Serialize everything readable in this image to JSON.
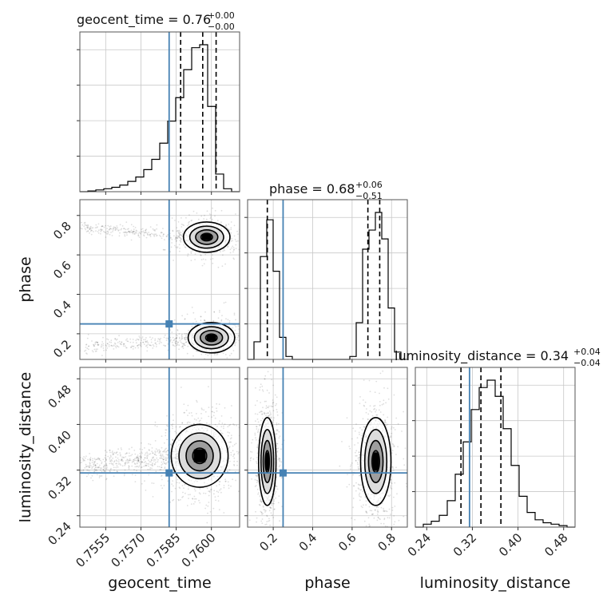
{
  "chart_data": {
    "type": "corner",
    "parameters": [
      {
        "name": "geocent_time",
        "title_main": "geocent_time = 0.76",
        "title_plus": "+0.00",
        "title_minus": "−0.00",
        "range": [
          0.7544,
          0.7612
        ],
        "ticks": [
          0.7555,
          0.757,
          0.7585,
          0.76
        ],
        "tick_labels": [
          "0.7555",
          "0.7570",
          "0.7585",
          "0.7600"
        ],
        "truth": 0.7582,
        "quantiles": [
          0.75869,
          0.75963,
          0.7602
        ],
        "hist": [
          0.0,
          0.005,
          0.012,
          0.02,
          0.03,
          0.045,
          0.07,
          0.1,
          0.15,
          0.22,
          0.33,
          0.48,
          0.64,
          0.83,
          0.98,
          1.0,
          0.58,
          0.12,
          0.02,
          0.0
        ]
      },
      {
        "name": "phase",
        "title_main": "phase = 0.68",
        "title_plus": "+0.06",
        "title_minus": "−0.51",
        "range": [
          0.07,
          0.88
        ],
        "ticks": [
          0.2,
          0.4,
          0.6,
          0.8
        ],
        "tick_labels": [
          "0.2",
          "0.4",
          "0.6",
          "0.8"
        ],
        "truth": 0.25,
        "quantiles": [
          0.17,
          0.68,
          0.74
        ],
        "hist": [
          0.0,
          0.12,
          0.7,
          0.95,
          0.6,
          0.15,
          0.02,
          0.0,
          0.0,
          0.0,
          0.0,
          0.0,
          0.0,
          0.0,
          0.0,
          0.0,
          0.02,
          0.25,
          0.75,
          0.88,
          1.0,
          0.82,
          0.35,
          0.05,
          0.0
        ]
      },
      {
        "name": "luminosity_distance",
        "title_main": "luminosity_distance = 0.34",
        "title_plus": "+0.04",
        "title_minus": "−0.04",
        "range": [
          0.22,
          0.5
        ],
        "ticks": [
          0.24,
          0.32,
          0.4,
          0.48
        ],
        "tick_labels": [
          "0.24",
          "0.32",
          "0.40",
          "0.48"
        ],
        "truth": 0.315,
        "quantiles": [
          0.3,
          0.335,
          0.37
        ],
        "hist": [
          0.0,
          0.02,
          0.04,
          0.08,
          0.18,
          0.36,
          0.58,
          0.8,
          0.95,
          1.0,
          0.89,
          0.67,
          0.42,
          0.21,
          0.1,
          0.05,
          0.03,
          0.02,
          0.01,
          0.0
        ]
      }
    ],
    "two_d": [
      {
        "x": "geocent_time",
        "y": "phase",
        "modes": [
          {
            "mx": 0.7598,
            "my": 0.69,
            "sx": 0.00045,
            "sy": 0.035,
            "tail": "left",
            "weight": 0.5
          },
          {
            "mx": 0.76,
            "my": 0.18,
            "sx": 0.00045,
            "sy": 0.035,
            "tail": "left",
            "weight": 0.5
          }
        ]
      },
      {
        "x": "geocent_time",
        "y": "luminosity_distance",
        "modes": [
          {
            "mx": 0.7595,
            "my": 0.345,
            "sx": 0.00055,
            "sy": 0.025,
            "tail": "left",
            "weight": 1.0
          }
        ]
      },
      {
        "x": "phase",
        "y": "luminosity_distance",
        "modes": [
          {
            "mx": 0.17,
            "my": 0.335,
            "sx": 0.02,
            "sy": 0.035,
            "tail": "none",
            "weight": 0.5
          },
          {
            "mx": 0.72,
            "my": 0.335,
            "sx": 0.035,
            "sy": 0.035,
            "tail": "none",
            "weight": 0.5
          }
        ]
      }
    ],
    "truth_color": "#4682b4",
    "hist_color": "#000000",
    "quantile_style": "dashed",
    "grid": true
  }
}
